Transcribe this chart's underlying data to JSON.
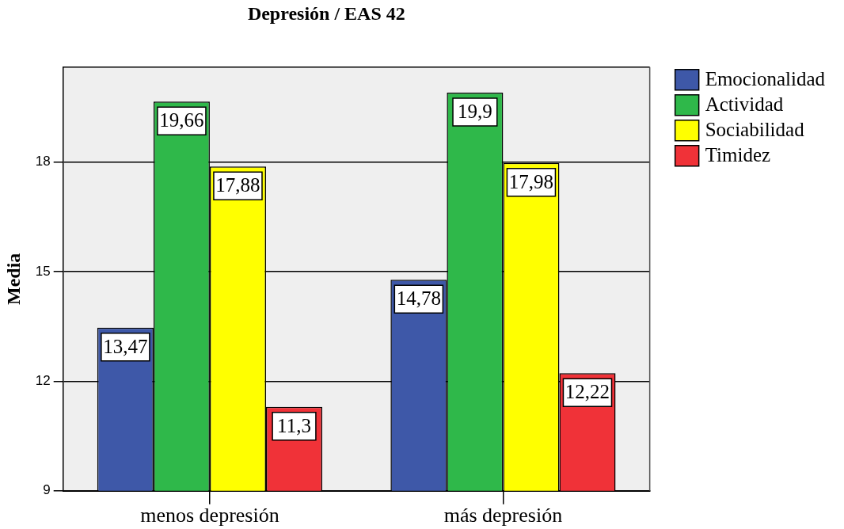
{
  "chart_data": {
    "type": "bar",
    "title": "Depresión / EAS 42",
    "ylabel": "Media",
    "categories": [
      "menos depresión",
      "más depresión"
    ],
    "series": [
      {
        "name": "Emocionalidad",
        "color": "#3e58a8",
        "values": [
          13.47,
          14.78
        ],
        "value_labels": [
          "13,47",
          "14,78"
        ]
      },
      {
        "name": "Actividad",
        "color": "#2fb84a",
        "values": [
          19.66,
          19.9
        ],
        "value_labels": [
          "19,66",
          "19,9"
        ]
      },
      {
        "name": "Sociabilidad",
        "color": "#ffff00",
        "values": [
          17.88,
          17.98
        ],
        "value_labels": [
          "17,88",
          "17,98"
        ]
      },
      {
        "name": "Timidez",
        "color": "#f03238",
        "values": [
          11.3,
          12.22
        ],
        "value_labels": [
          "11,3",
          "12,22"
        ]
      }
    ],
    "ylim": [
      9,
      20.6
    ],
    "yticks": [
      9,
      12,
      15,
      18
    ],
    "grid": "y",
    "legend": "top right"
  }
}
